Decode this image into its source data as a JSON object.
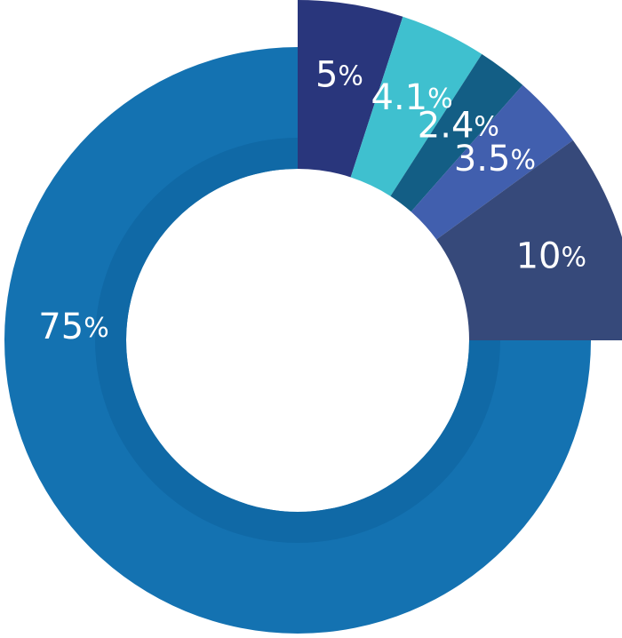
{
  "chart_data": {
    "type": "pie",
    "variant": "donut",
    "slices": [
      {
        "label": "5%",
        "value": 5.0,
        "color": "#29367c",
        "exploded": true
      },
      {
        "label": "4.1%",
        "value": 4.1,
        "color": "#3fc0cf",
        "exploded": true
      },
      {
        "label": "2.4%",
        "value": 2.4,
        "color": "#135e85",
        "exploded": true
      },
      {
        "label": "3.5%",
        "value": 3.5,
        "color": "#415fae",
        "exploded": true
      },
      {
        "label": "10%",
        "value": 10.0,
        "color": "#36497a",
        "exploded": true
      },
      {
        "label": "75%",
        "value": 75.0,
        "color": "#1472b1",
        "exploded": false
      }
    ],
    "inner_ring_color": "#1069a6",
    "title": "",
    "legend": "none",
    "start": "top, clockwise"
  }
}
